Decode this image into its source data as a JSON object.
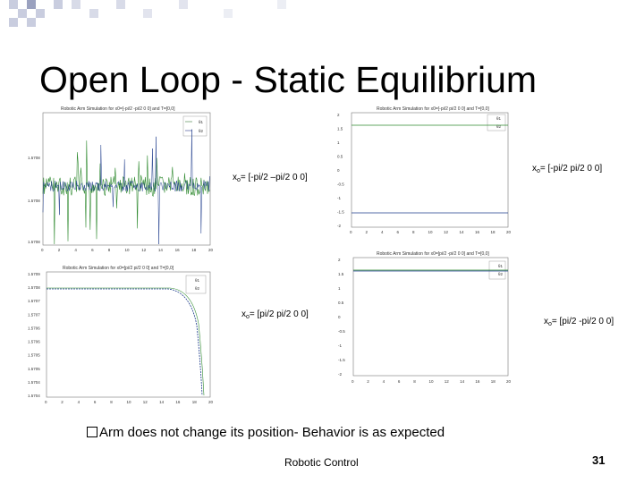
{
  "slide": {
    "title": "Open Loop - Static Equilibrium",
    "bullet": "Arm does not change its position- Behavior is as expected",
    "footer": "Robotic Control",
    "page_number": "31",
    "colors": {
      "deco_square": "#c9cddf",
      "deco_square_dark": "#9aa1bf"
    }
  },
  "labels": {
    "l1_main": "x",
    "l1_sub": "o",
    "l1_rest": "= [-pi/2 –pi/2 0 0]",
    "l2_main": "x",
    "l2_sub": "o",
    "l2_rest": "= [-pi/2 pi/2 0 0]",
    "l3_main": "x",
    "l3_sub": "o",
    "l3_rest": "= [pi/2 pi/2 0 0]",
    "l4_main": "x",
    "l4_sub": "o",
    "l4_rest": "= [pi/2 -pi/2 0 0]"
  },
  "plots": {
    "p1": {
      "title": "Robotic Arm Simulation for x0=[-pi/2 -pi/2 0 0] and T=[0,0]",
      "legend": [
        "θ1",
        "θ2"
      ],
      "yticks": [
        "1.5708",
        "1.5708",
        "1.5708"
      ],
      "xticks": [
        "0",
        "2",
        "4",
        "6",
        "8",
        "10",
        "12",
        "14",
        "16",
        "18",
        "20"
      ]
    },
    "p2": {
      "title": "Robotic Arm Simulation for x0=[-pi/2 pi/2 0 0] and T=[0,0]",
      "legend": [
        "θ1",
        "θ2"
      ],
      "yticks": [
        "2",
        "1.5",
        "1",
        "0.5",
        "0",
        "-0.5",
        "-1",
        "-1.5",
        "-2"
      ],
      "xticks": [
        "0",
        "2",
        "4",
        "6",
        "8",
        "10",
        "12",
        "14",
        "16",
        "18",
        "20"
      ]
    },
    "p3": {
      "title": "Robotic Arm Simulation for x0=[pi/2 pi/2 0 0] and T=[0,0]",
      "legend": [
        "θ1",
        "θ2"
      ],
      "yticks": [
        "1.5709",
        "1.5708",
        "1.5707",
        "1.5707",
        "1.5706",
        "1.5706",
        "1.5705",
        "1.5705",
        "1.5704",
        "1.5704"
      ],
      "xticks": [
        "0",
        "2",
        "4",
        "6",
        "8",
        "10",
        "12",
        "14",
        "16",
        "18",
        "20"
      ]
    },
    "p4": {
      "title": "Robotic Arm Simulation for x0=[pi/2 -pi/2 0 0] and T=[0,0]",
      "legend": [
        "θ1",
        "θ2"
      ],
      "yticks": [
        "2",
        "1.5",
        "1",
        "0.5",
        "0",
        "-0.5",
        "-1",
        "-1.5",
        "-2"
      ],
      "xticks": [
        "0",
        "2",
        "4",
        "6",
        "8",
        "10",
        "12",
        "14",
        "16",
        "18",
        "20"
      ]
    }
  }
}
